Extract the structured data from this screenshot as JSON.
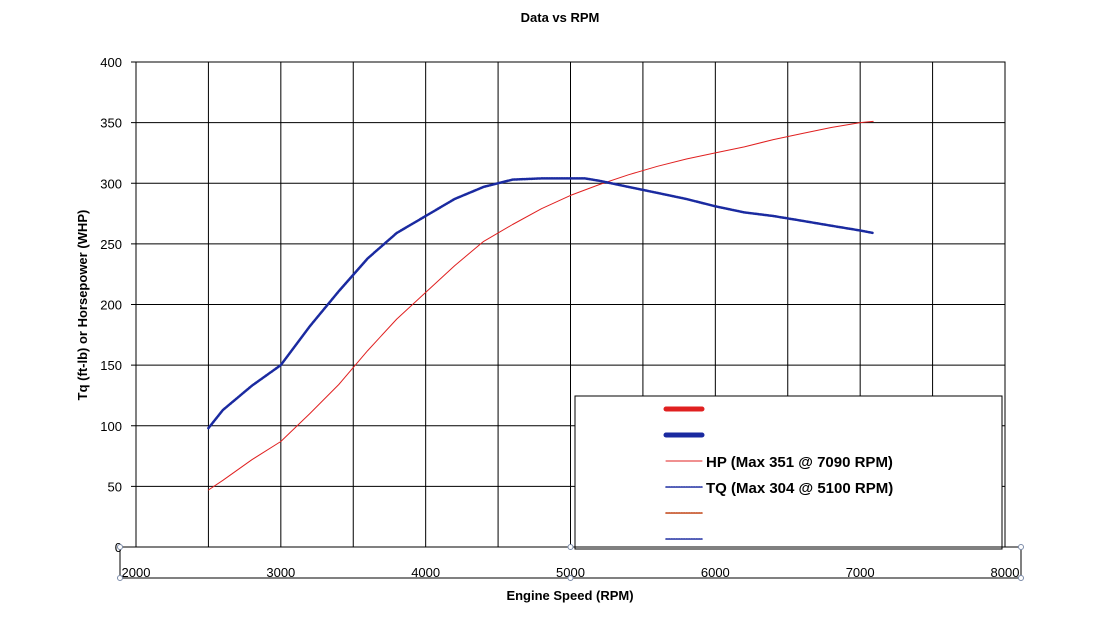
{
  "chart_data": {
    "type": "line",
    "title": "Data vs RPM",
    "xlabel": "Engine Speed (RPM)",
    "ylabel": "Tq (ft-lb) or Horsepower (WHP)",
    "xlim": [
      2000,
      8000
    ],
    "ylim": [
      0,
      400
    ],
    "x_ticks": [
      2000,
      3000,
      4000,
      5000,
      6000,
      7000,
      8000
    ],
    "y_ticks": [
      0,
      50,
      100,
      150,
      200,
      250,
      300,
      350,
      400
    ],
    "grid": true,
    "legend_position": "bottom-right",
    "series": [
      {
        "name": "HP (Max 351 @ 7090 RPM)",
        "color": "#e02020",
        "style": "thin-line",
        "x": [
          2500,
          2600,
          2800,
          3000,
          3200,
          3400,
          3600,
          3800,
          4000,
          4200,
          4400,
          4600,
          4800,
          5000,
          5200,
          5400,
          5600,
          5800,
          6000,
          6200,
          6400,
          6600,
          6800,
          7000,
          7090
        ],
        "y": [
          47,
          55,
          72,
          87,
          110,
          134,
          162,
          188,
          210,
          232,
          252,
          266,
          279,
          290,
          299,
          307,
          314,
          320,
          325,
          330,
          336,
          341,
          346,
          350,
          351
        ]
      },
      {
        "name": "TQ (Max 304 @ 5100 RPM)",
        "color": "#1a2aa0",
        "style": "dotted-line",
        "x": [
          2500,
          2600,
          2800,
          3000,
          3200,
          3400,
          3600,
          3800,
          4000,
          4200,
          4400,
          4600,
          4800,
          5000,
          5100,
          5200,
          5400,
          5600,
          5800,
          6000,
          6200,
          6400,
          6600,
          6800,
          7000,
          7090
        ],
        "y": [
          98,
          113,
          133,
          150,
          182,
          211,
          238,
          259,
          273,
          287,
          297,
          303,
          304,
          304,
          304,
          302,
          297,
          292,
          287,
          281,
          276,
          273,
          269,
          265,
          261,
          259
        ]
      }
    ],
    "legend_entries": [
      {
        "color": "#e02020",
        "style": "thick",
        "label": ""
      },
      {
        "color": "#1a2aa0",
        "style": "thick",
        "label": ""
      },
      {
        "color": "#e02020",
        "style": "thin",
        "label": "HP (Max 351 @ 7090 RPM)"
      },
      {
        "color": "#1a2aa0",
        "style": "dotted",
        "label": "TQ (Max 304 @ 5100 RPM)"
      },
      {
        "color": "#c04010",
        "style": "dotted",
        "label": ""
      },
      {
        "color": "#1a2aa0",
        "style": "dotted",
        "label": ""
      }
    ]
  }
}
